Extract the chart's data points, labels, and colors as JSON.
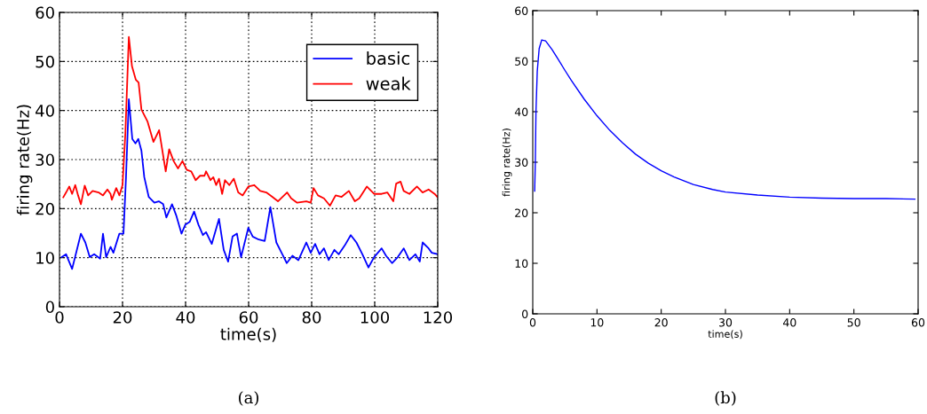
{
  "chart_data": [
    {
      "type": "line",
      "xlabel": "time(s)",
      "ylabel": "firing rate(Hz)",
      "xlim": [
        0,
        120
      ],
      "ylim": [
        0,
        60
      ],
      "xticks": [
        0,
        20,
        40,
        60,
        80,
        100,
        120
      ],
      "yticks": [
        0,
        10,
        20,
        30,
        40,
        50,
        60
      ],
      "grid": true,
      "legend": "top right",
      "annotations": [
        "(a)"
      ],
      "series": [
        {
          "name": "basic",
          "color": "#0000ff",
          "x": [
            0.7,
            2.1,
            4,
            5.4,
            6.8,
            8.2,
            9.6,
            11,
            12.9,
            13.8,
            14.8,
            16.2,
            17.1,
            19,
            20.3,
            21.1,
            22,
            23.1,
            24.1,
            25,
            26,
            26.9,
            28.3,
            30.1,
            31.5,
            32.9,
            33.9,
            35.7,
            37.1,
            38.7,
            39.9,
            41.3,
            42.7,
            44.1,
            45.5,
            46.5,
            48.3,
            50.6,
            52.1,
            53.5,
            54.9,
            56.3,
            57.6,
            59.9,
            61.3,
            63.2,
            65.1,
            66.9,
            68.8,
            70.7,
            72.1,
            73.9,
            75.8,
            78.3,
            79.7,
            81.1,
            82.5,
            83.9,
            85.4,
            87.2,
            88.6,
            90.5,
            92.4,
            94.2,
            96.1,
            98,
            99.8,
            102.2,
            103.6,
            105.5,
            107.3,
            109.2,
            111,
            112.9,
            114.3,
            115.2,
            117.1,
            118.1,
            120
          ],
          "values": [
            10.1,
            10.7,
            7.7,
            11.3,
            14.9,
            13.1,
            10.1,
            10.7,
            9.8,
            14.9,
            10.1,
            12.2,
            11,
            14.9,
            14.9,
            26.4,
            42.3,
            34.2,
            33.3,
            34.2,
            31.8,
            26.4,
            22.4,
            21.2,
            21.5,
            20.9,
            18.2,
            20.9,
            18.5,
            14.9,
            16.7,
            17.3,
            19.4,
            16.7,
            14.6,
            15.2,
            12.8,
            17.9,
            11.6,
            9.2,
            14.3,
            14.9,
            10.1,
            16.1,
            14.3,
            13.7,
            13.4,
            20.3,
            13.1,
            10.7,
            8.9,
            10.4,
            9.5,
            13.1,
            11,
            12.8,
            10.7,
            11.9,
            9.5,
            11.6,
            10.7,
            12.5,
            14.6,
            13.1,
            10.7,
            8,
            10.1,
            11.9,
            10.4,
            8.9,
            10.1,
            11.9,
            9.5,
            10.7,
            9.2,
            13.1,
            11.9,
            11,
            10.7
          ]
        },
        {
          "name": "weak",
          "color": "#ff0000",
          "x": [
            1.2,
            2.1,
            3.1,
            4,
            5,
            5.9,
            6.8,
            8,
            9.1,
            10.5,
            12.4,
            13.8,
            15.2,
            16.2,
            16.6,
            18,
            19,
            20,
            20.9,
            22,
            23,
            24.2,
            25.1,
            26,
            27.9,
            29.8,
            31.6,
            33.7,
            34.8,
            36.2,
            37.6,
            39,
            40.4,
            41.8,
            43.2,
            44.6,
            46,
            46.5,
            47.9,
            48.8,
            49.7,
            50.6,
            51.6,
            52.5,
            53.9,
            55.3,
            56.7,
            58.1,
            59.9,
            61.8,
            63.7,
            65.6,
            67.5,
            69.3,
            72.2,
            73.5,
            75.4,
            78.3,
            79.7,
            80.6,
            82,
            83.9,
            85.8,
            87.6,
            89.5,
            91.8,
            93.7,
            95.1,
            97.5,
            99.8,
            102.2,
            104,
            105.9,
            106.8,
            108.2,
            109.2,
            111,
            113.4,
            115.2,
            117.1,
            119,
            120
          ],
          "values": [
            22.3,
            23.3,
            24.5,
            23,
            24.8,
            22.7,
            20.9,
            24.7,
            22.7,
            23.6,
            23.3,
            22.7,
            23.9,
            23,
            21.8,
            24.2,
            22.7,
            24.8,
            35.4,
            55,
            49,
            46.3,
            45.7,
            40.2,
            37.8,
            33.6,
            36,
            27.6,
            32.1,
            29.7,
            28.2,
            29.7,
            27.9,
            27.6,
            25.8,
            26.7,
            26.7,
            27.6,
            25.8,
            26.4,
            24.8,
            26.1,
            23,
            25.8,
            24.8,
            26.1,
            23.3,
            22.7,
            24.5,
            24.8,
            23.6,
            23.3,
            22.4,
            21.5,
            23.3,
            22.1,
            21.2,
            21.5,
            21.2,
            24.2,
            22.7,
            22.1,
            20.6,
            22.7,
            22.4,
            23.6,
            21.5,
            22.1,
            24.5,
            23,
            23,
            23.3,
            21.5,
            25.1,
            25.5,
            23.6,
            23,
            24.5,
            23.3,
            23.9,
            23,
            22.3
          ]
        }
      ]
    },
    {
      "type": "line",
      "xlabel": "time(s)",
      "ylabel": "firing rate(Hz)",
      "xlim": [
        0,
        60
      ],
      "ylim": [
        0,
        60
      ],
      "xticks": [
        0,
        10,
        20,
        30,
        40,
        50,
        60
      ],
      "yticks": [
        0,
        10,
        20,
        30,
        40,
        50,
        60
      ],
      "annotations": [
        "(b)"
      ],
      "series": [
        {
          "color": "#0000ff",
          "x": [
            0.3,
            0.4,
            0.5,
            0.7,
            1.0,
            1.4,
            2,
            3,
            4,
            5,
            6,
            8,
            10,
            12,
            14,
            16,
            18,
            20,
            22,
            25,
            28,
            30,
            35,
            40,
            45,
            50,
            55,
            59.5
          ],
          "values": [
            24.3,
            30,
            40,
            48,
            52.5,
            54.2,
            54,
            52.3,
            50.3,
            48.2,
            46.2,
            42.5,
            39.2,
            36.3,
            33.8,
            31.6,
            29.8,
            28.3,
            27.1,
            25.6,
            24.6,
            24.1,
            23.5,
            23.1,
            22.9,
            22.8,
            22.8,
            22.7
          ]
        }
      ]
    }
  ]
}
